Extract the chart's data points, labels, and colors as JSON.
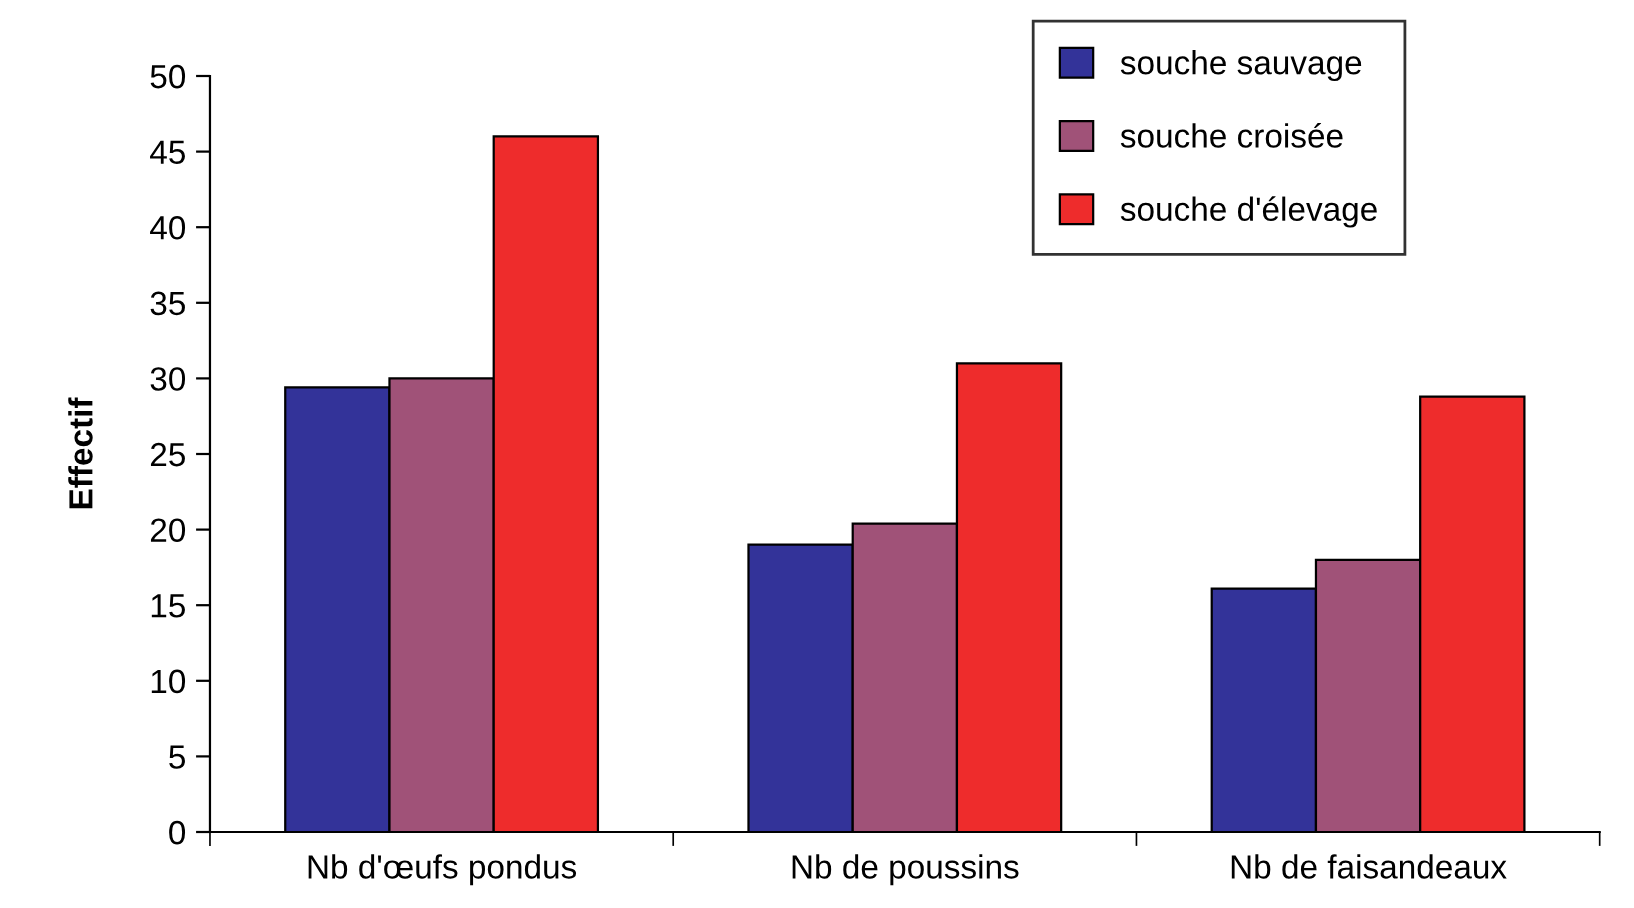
{
  "chart_data": {
    "type": "bar",
    "ylabel": "Effectif",
    "categories": [
      "Nb d'œufs pondus",
      "Nb de poussins",
      "Nb de faisandeaux"
    ],
    "series": [
      {
        "name": "souche sauvage",
        "color": "#333399",
        "values": [
          29.4,
          19,
          16.1
        ]
      },
      {
        "name": "souche croisée",
        "color": "#a05278",
        "values": [
          30,
          20.4,
          18
        ]
      },
      {
        "name": "souche d'élevage",
        "color": "#ee2c2c",
        "values": [
          46,
          31,
          28.8
        ]
      }
    ],
    "ylim": [
      0,
      50
    ],
    "yticks": [
      0,
      5,
      10,
      15,
      20,
      25,
      30,
      35,
      40,
      45,
      50
    ],
    "grid": false,
    "legend": "top right"
  }
}
